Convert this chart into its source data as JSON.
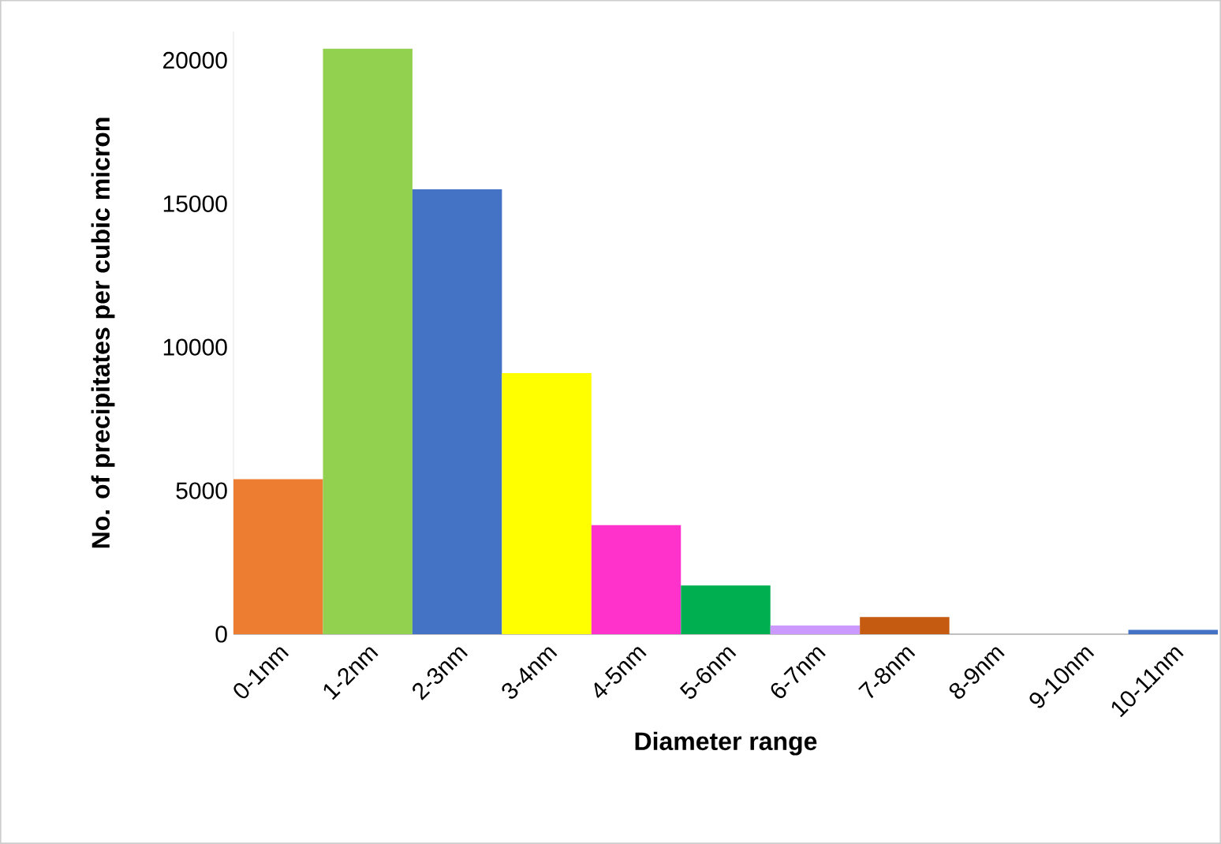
{
  "chart_data": {
    "type": "bar",
    "xlabel": "Diameter range",
    "ylabel": "No. of precipitates per cubic micron",
    "categories": [
      "0-1nm",
      "1-2nm",
      "2-3nm",
      "3-4nm",
      "4-5nm",
      "5-6nm",
      "6-7nm",
      "7-8nm",
      "8-9nm",
      "9-10nm",
      "10-11nm"
    ],
    "values": [
      5400,
      20400,
      15500,
      9100,
      3800,
      1700,
      300,
      600,
      0,
      0,
      150
    ],
    "ylim": [
      0,
      21000
    ],
    "colors": [
      "#ed7d31",
      "#92d050",
      "#4472c4",
      "#ffff00",
      "#ff33cc",
      "#00b050",
      "#cc99ff",
      "#c55a11",
      "#7030a0",
      "#ffc000",
      "#4472c4"
    ],
    "yticks": [
      0,
      5000,
      10000,
      15000,
      20000
    ],
    "grid": false
  }
}
